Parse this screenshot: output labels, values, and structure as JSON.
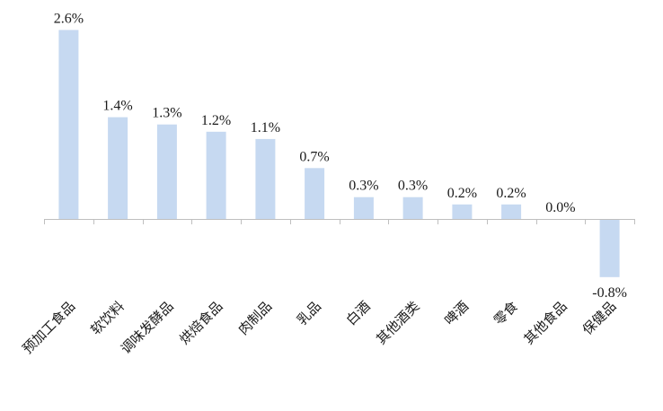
{
  "chart_data": {
    "type": "bar",
    "title": "",
    "xlabel": "",
    "ylabel": "",
    "categories": [
      "预加工食品",
      "软饮料",
      "调味发酵品",
      "烘焙食品",
      "肉制品",
      "乳品",
      "白酒",
      "其他酒类",
      "啤酒",
      "零食",
      "其他食品",
      "保健品"
    ],
    "values": [
      2.6,
      1.4,
      1.3,
      1.2,
      1.1,
      0.7,
      0.3,
      0.3,
      0.2,
      0.2,
      0.0,
      -0.8
    ],
    "value_labels": [
      "2.6%",
      "1.4%",
      "1.3%",
      "1.2%",
      "1.1%",
      "0.7%",
      "0.3%",
      "0.3%",
      "0.2%",
      "0.2%",
      "0.0%",
      "-0.8%"
    ],
    "ylim": [
      -1.0,
      3.0
    ],
    "grid": false,
    "legend": "none",
    "colors": {
      "bar": "#c6d9f1",
      "axis": "#bfbfbf",
      "text": "#1a1a1a"
    }
  }
}
